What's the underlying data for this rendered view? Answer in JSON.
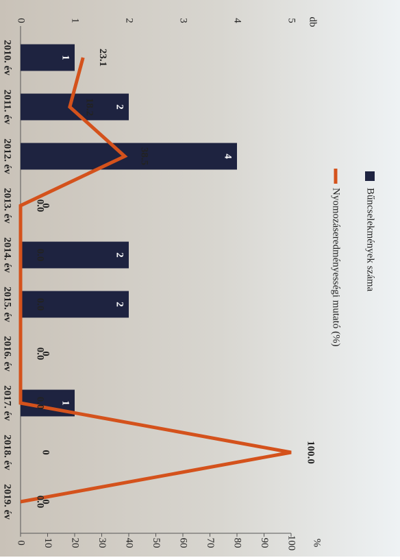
{
  "chart_data": {
    "type": "bar-line",
    "categories": [
      "2010. év",
      "2011. év",
      "2012. év",
      "2013. év",
      "2014. év",
      "2015. év",
      "2016. év",
      "2017. év",
      "2018. év",
      "2019. év"
    ],
    "series": [
      {
        "name": "Bűncselekmények száma",
        "type": "bar",
        "color": "#1e2340",
        "axis": "y",
        "values": [
          1,
          2,
          4,
          0,
          2,
          2,
          0,
          1,
          0,
          0
        ]
      },
      {
        "name": "Nyomozáseredményességi mutató (%)",
        "type": "line",
        "color": "#d4521c",
        "axis": "y2",
        "values": [
          23.1,
          18.2,
          38.5,
          0,
          0,
          0,
          0,
          0,
          100,
          0
        ],
        "value_labels": [
          "23.1",
          "18.2",
          "38.5",
          "0.0",
          "0.0",
          "0.0",
          "0.0",
          "0.0",
          "100.0",
          "0.0"
        ]
      }
    ],
    "y_label": "db",
    "y2_label": "%",
    "ylim": [
      0,
      5
    ],
    "yticks": [
      0,
      1,
      2,
      3,
      4,
      5
    ],
    "y2lim": [
      0,
      100
    ],
    "y2ticks": [
      0,
      10,
      20,
      30,
      40,
      50,
      60,
      70,
      80,
      90,
      100
    ],
    "grid": false
  }
}
